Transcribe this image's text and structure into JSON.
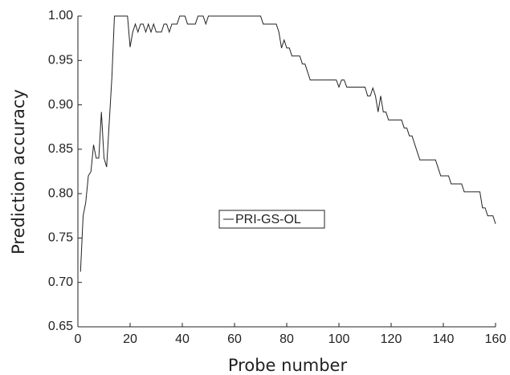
{
  "chart_data": {
    "type": "line",
    "xlabel": "Probe number",
    "ylabel": "Prediction accuracy",
    "xlim": [
      0,
      160
    ],
    "ylim": [
      0.65,
      1.0
    ],
    "xticks": [
      0,
      20,
      40,
      60,
      80,
      100,
      120,
      140,
      160
    ],
    "yticks": [
      {
        "value": 0.65,
        "label": "0.65"
      },
      {
        "value": 0.7,
        "label": "0.70"
      },
      {
        "value": 0.75,
        "label": "0.75"
      },
      {
        "value": 0.8,
        "label": "0.80"
      },
      {
        "value": 0.85,
        "label": "0.85"
      },
      {
        "value": 0.9,
        "label": "0.90"
      },
      {
        "value": 0.95,
        "label": "0.95"
      },
      {
        "value": 1.0,
        "label": "1.00"
      }
    ],
    "x": [
      1,
      2,
      3,
      4,
      5,
      6,
      7,
      8,
      9,
      10,
      11,
      12,
      13,
      14,
      15,
      16,
      17,
      18,
      19,
      20,
      21,
      22,
      23,
      24,
      25,
      26,
      27,
      28,
      29,
      30,
      31,
      32,
      33,
      34,
      35,
      36,
      37,
      38,
      39,
      40,
      41,
      42,
      43,
      44,
      45,
      46,
      47,
      48,
      49,
      50,
      51,
      52,
      53,
      54,
      55,
      56,
      57,
      58,
      59,
      60,
      61,
      62,
      63,
      64,
      65,
      66,
      67,
      68,
      69,
      70,
      71,
      72,
      73,
      74,
      75,
      76,
      77,
      78,
      79,
      80,
      81,
      82,
      83,
      84,
      85,
      86,
      87,
      88,
      89,
      90,
      91,
      92,
      93,
      94,
      95,
      96,
      97,
      98,
      99,
      100,
      101,
      102,
      103,
      104,
      105,
      106,
      107,
      108,
      109,
      110,
      111,
      112,
      113,
      114,
      115,
      116,
      117,
      118,
      119,
      120,
      121,
      122,
      123,
      124,
      125,
      126,
      127,
      128,
      129,
      130,
      131,
      132,
      133,
      134,
      135,
      136,
      137,
      138,
      139,
      140,
      141,
      142,
      143,
      144,
      145,
      146,
      147,
      148,
      149,
      150,
      151,
      152,
      153,
      154,
      155,
      156,
      157,
      158,
      159,
      160
    ],
    "series": [
      {
        "name": "PRI-GS-OL",
        "color": "#222222",
        "values": [
          0.712,
          0.775,
          0.79,
          0.82,
          0.825,
          0.855,
          0.84,
          0.84,
          0.892,
          0.84,
          0.83,
          0.88,
          0.93,
          1,
          1,
          1,
          1,
          1,
          1,
          0.965,
          0.982,
          0.991,
          0.982,
          0.991,
          0.991,
          0.982,
          0.991,
          0.982,
          0.991,
          0.982,
          0.982,
          0.982,
          0.991,
          0.991,
          0.982,
          0.991,
          0.991,
          0.991,
          1,
          1,
          1,
          0.991,
          0.991,
          0.991,
          0.991,
          1,
          1,
          1,
          0.991,
          1,
          1,
          1,
          1,
          1,
          1,
          1,
          1,
          1,
          1,
          1,
          1,
          1,
          1,
          1,
          1,
          1,
          1,
          1,
          1,
          1,
          0.991,
          0.991,
          0.991,
          0.991,
          0.991,
          0.991,
          0.982,
          0.964,
          0.973,
          0.964,
          0.964,
          0.955,
          0.955,
          0.955,
          0.955,
          0.946,
          0.946,
          0.937,
          0.928,
          0.928,
          0.928,
          0.928,
          0.928,
          0.928,
          0.928,
          0.928,
          0.928,
          0.928,
          0.928,
          0.92,
          0.928,
          0.928,
          0.92,
          0.92,
          0.92,
          0.92,
          0.92,
          0.92,
          0.92,
          0.92,
          0.91,
          0.91,
          0.919,
          0.91,
          0.892,
          0.91,
          0.892,
          0.892,
          0.883,
          0.883,
          0.883,
          0.883,
          0.883,
          0.883,
          0.874,
          0.874,
          0.865,
          0.865,
          0.856,
          0.847,
          0.838,
          0.838,
          0.838,
          0.838,
          0.838,
          0.838,
          0.838,
          0.829,
          0.82,
          0.82,
          0.82,
          0.82,
          0.811,
          0.811,
          0.811,
          0.811,
          0.811,
          0.802,
          0.802,
          0.802,
          0.802,
          0.802,
          0.802,
          0.802,
          0.784,
          0.784,
          0.775,
          0.775,
          0.775,
          0.766
        ]
      }
    ]
  }
}
